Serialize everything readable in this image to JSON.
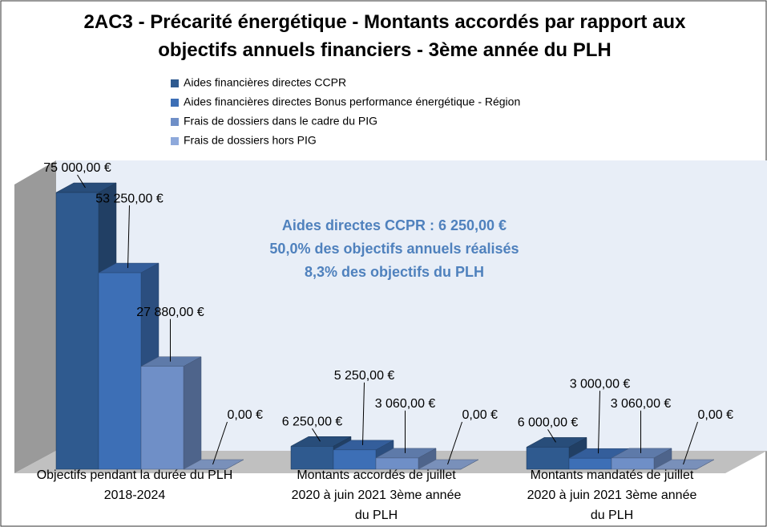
{
  "chart_data": {
    "type": "bar3d",
    "title": "2AC3 - Précarité énergétique - Montants accordés par rapport aux objectifs annuels financiers - 3ème année du PLH",
    "categories": [
      "Objectifs pendant la durée du PLH 2018-2024",
      "Montants accordés de juillet 2020 à juin 2021 3ème année du PLH",
      "Montants mandatés de juillet 2020 à juin 2021 3ème année du PLH"
    ],
    "series": [
      {
        "name": "Aides financières directes CCPR",
        "color": "#2f5a8f",
        "values": [
          75000,
          6250,
          6000
        ],
        "value_labels": [
          "75 000,00 €",
          "6 250,00 €",
          "6 000,00 €"
        ]
      },
      {
        "name": "Aides financières directes Bonus performance énergétique - Région",
        "color": "#3d6fb6",
        "values": [
          53250,
          5250,
          3000
        ],
        "value_labels": [
          "53 250,00 €",
          "5 250,00 €",
          "3 000,00 €"
        ]
      },
      {
        "name": "Frais de dossiers dans le cadre du PIG",
        "color": "#6f8fc7",
        "values": [
          27880,
          3060,
          3060
        ],
        "value_labels": [
          "27 880,00 €",
          "3 060,00 €",
          "3 060,00 €"
        ]
      },
      {
        "name": "Frais de dossiers hors PIG",
        "color": "#8ea9db",
        "values": [
          0,
          0,
          0
        ],
        "value_labels": [
          "0,00 €",
          "0,00 €",
          "0,00 €"
        ]
      }
    ],
    "annotations": [
      "Aides directes CCPR : 6 250,00 €",
      "50,0% des objectifs annuels réalisés",
      "8,3% des objectifs du PLH"
    ],
    "legend": "top"
  }
}
